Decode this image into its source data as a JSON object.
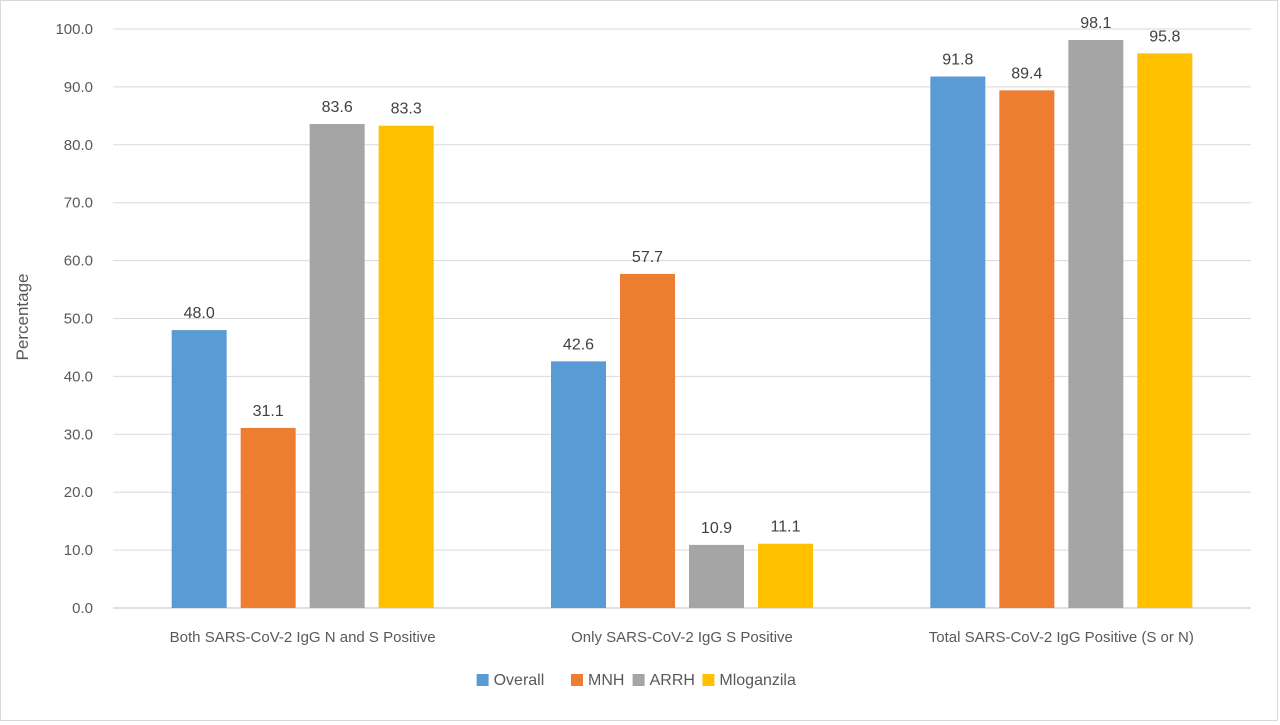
{
  "chart_data": {
    "type": "bar",
    "title": "",
    "xlabel": "",
    "ylabel": "Percentage",
    "ylim": [
      0,
      100
    ],
    "yticks": [
      "0.0",
      "10.0",
      "20.0",
      "30.0",
      "40.0",
      "50.0",
      "60.0",
      "70.0",
      "80.0",
      "90.0",
      "100.0"
    ],
    "categories": [
      "Both SARS-CoV-2 IgG N and S Positive",
      "Only SARS-CoV-2 IgG S Positive",
      "Total SARS-CoV-2 IgG Positive (S or N)"
    ],
    "series": [
      {
        "name": "Overall",
        "color": "#5b9bd5",
        "values": [
          48.0,
          42.6,
          91.8
        ],
        "labels": [
          "48.0",
          "42.6",
          "91.8"
        ]
      },
      {
        "name": "MNH",
        "color": "#ed7d31",
        "values": [
          31.1,
          57.7,
          89.4
        ],
        "labels": [
          "31.1",
          "57.7",
          "89.4"
        ]
      },
      {
        "name": "ARRH",
        "color": "#a5a5a5",
        "values": [
          83.6,
          10.9,
          98.1
        ],
        "labels": [
          "83.6",
          "10.9",
          "98.1"
        ]
      },
      {
        "name": "Mloganzila",
        "color": "#ffc000",
        "values": [
          83.3,
          11.1,
          95.8
        ],
        "labels": [
          "83.3",
          "11.1",
          "95.8"
        ]
      }
    ],
    "grid": true,
    "legend_position": "bottom",
    "data_labels": true
  }
}
